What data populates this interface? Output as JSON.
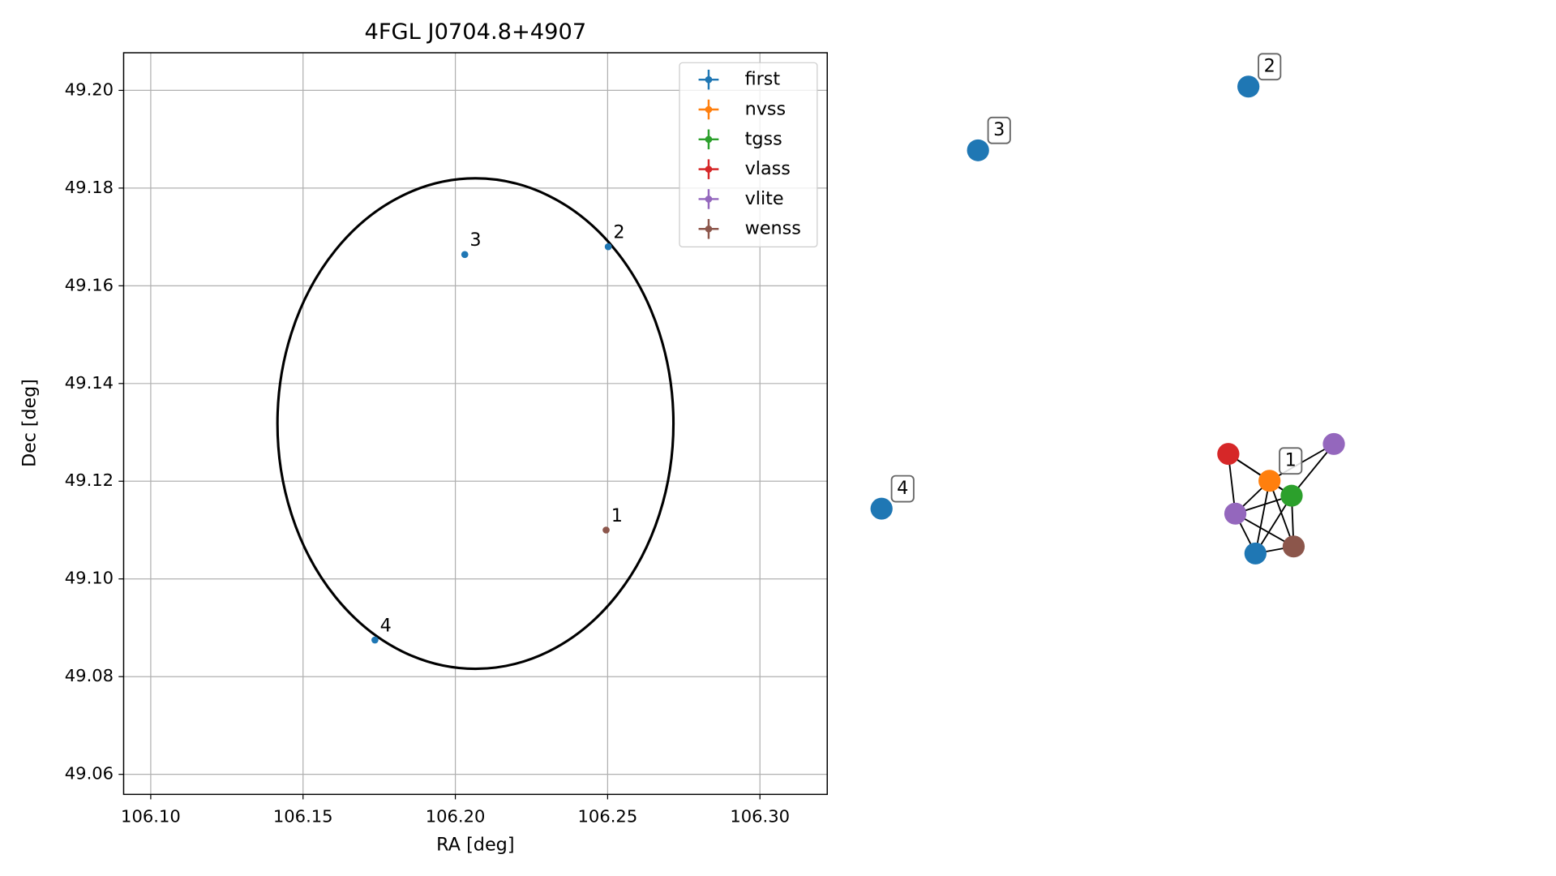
{
  "chart_data": [
    {
      "type": "scatter",
      "title": "4FGL J0704.8+4907",
      "xlabel": "RA [deg]",
      "ylabel": "Dec [deg]",
      "xlim": [
        106.0911,
        106.3221
      ],
      "ylim": [
        49.0559,
        49.2077
      ],
      "xticks": [
        {
          "value": 106.1,
          "label": "106.10"
        },
        {
          "value": 106.15,
          "label": "106.15"
        },
        {
          "value": 106.2,
          "label": "106.20"
        },
        {
          "value": 106.25,
          "label": "106.25"
        },
        {
          "value": 106.3,
          "label": "106.30"
        }
      ],
      "yticks": [
        {
          "value": 49.06,
          "label": "49.06"
        },
        {
          "value": 49.08,
          "label": "49.08"
        },
        {
          "value": 49.1,
          "label": "49.10"
        },
        {
          "value": 49.12,
          "label": "49.12"
        },
        {
          "value": 49.14,
          "label": "49.14"
        },
        {
          "value": 49.16,
          "label": "49.16"
        },
        {
          "value": 49.18,
          "label": "49.18"
        },
        {
          "value": 49.2,
          "label": "49.20"
        }
      ],
      "grid": true,
      "legend": "upper right",
      "ellipse": {
        "center": [
          106.2066,
          49.1318
        ],
        "width": 0.13,
        "height": 0.1004,
        "color": "#000000"
      },
      "series": [
        {
          "name": "first",
          "color": "#1f77b4",
          "x": [
            106.2502,
            106.2031,
            106.1736
          ],
          "y": [
            49.168,
            49.1664,
            49.0875
          ],
          "labels": [
            "2",
            "3",
            "4"
          ]
        },
        {
          "name": "nvss",
          "color": "#ff7f0e",
          "x": [],
          "y": [],
          "labels": []
        },
        {
          "name": "tgss",
          "color": "#2ca02c",
          "x": [],
          "y": [],
          "labels": []
        },
        {
          "name": "vlass",
          "color": "#d62728",
          "x": [],
          "y": [],
          "labels": []
        },
        {
          "name": "vlite",
          "color": "#9467bd",
          "x": [],
          "y": [],
          "labels": []
        },
        {
          "name": "wenss",
          "color": "#8c564b",
          "x": [
            106.2495
          ],
          "y": [
            49.11
          ],
          "labels": [
            "1"
          ]
        }
      ]
    },
    {
      "type": "network",
      "nodes": [
        {
          "color": "#1f77b4",
          "label": "2"
        },
        {
          "color": "#1f77b4",
          "label": "3"
        },
        {
          "color": "#1f77b4",
          "label": "4"
        },
        {
          "color": "#d62728"
        },
        {
          "color": "#ff7f0e",
          "label": "1"
        },
        {
          "color": "#2ca02c"
        },
        {
          "color": "#9467bd"
        },
        {
          "color": "#9467bd"
        },
        {
          "color": "#1f77b4"
        },
        {
          "color": "#8c564b"
        }
      ],
      "edges": [
        [
          3,
          4
        ],
        [
          3,
          7
        ],
        [
          3,
          5
        ],
        [
          4,
          6
        ],
        [
          4,
          7
        ],
        [
          4,
          8
        ],
        [
          4,
          9
        ],
        [
          5,
          6
        ],
        [
          5,
          7
        ],
        [
          5,
          8
        ],
        [
          5,
          9
        ],
        [
          7,
          8
        ],
        [
          7,
          9
        ],
        [
          8,
          9
        ],
        [
          4,
          5
        ]
      ]
    }
  ]
}
